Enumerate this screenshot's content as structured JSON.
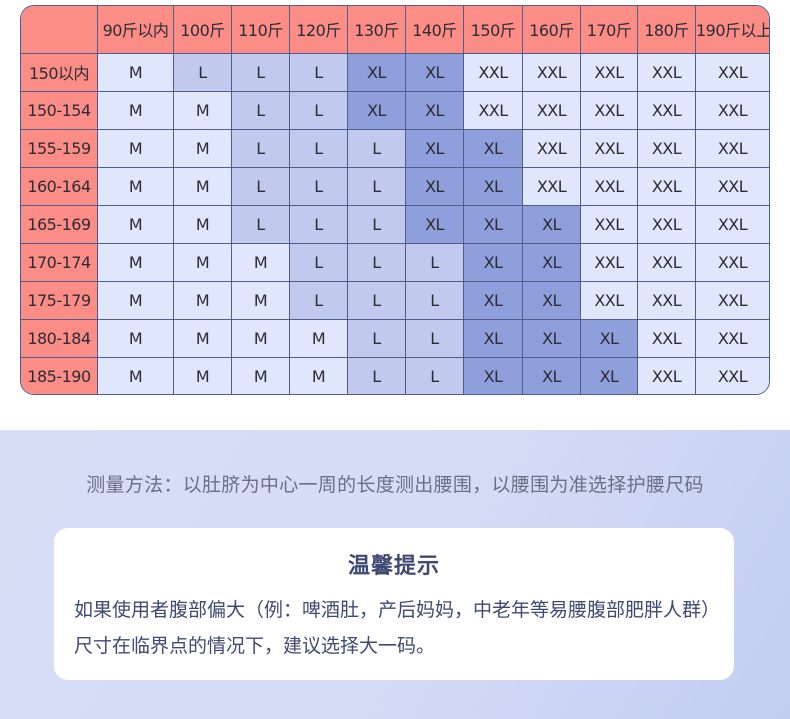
{
  "size_chart": {
    "corner": "",
    "columns": [
      "90斤以内",
      "100斤",
      "110斤",
      "120斤",
      "130斤",
      "140斤",
      "150斤",
      "160斤",
      "170斤",
      "180斤",
      "190斤以上"
    ],
    "rows": [
      {
        "height": "150以内",
        "sizes": [
          "M",
          "L",
          "L",
          "L",
          "XL",
          "XL",
          "XXL",
          "XXL",
          "XXL",
          "XXL",
          "XXL"
        ]
      },
      {
        "height": "150-154",
        "sizes": [
          "M",
          "M",
          "L",
          "L",
          "XL",
          "XL",
          "XXL",
          "XXL",
          "XXL",
          "XXL",
          "XXL"
        ]
      },
      {
        "height": "155-159",
        "sizes": [
          "M",
          "M",
          "L",
          "L",
          "L",
          "XL",
          "XL",
          "XXL",
          "XXL",
          "XXL",
          "XXL"
        ]
      },
      {
        "height": "160-164",
        "sizes": [
          "M",
          "M",
          "L",
          "L",
          "L",
          "XL",
          "XL",
          "XXL",
          "XXL",
          "XXL",
          "XXL"
        ]
      },
      {
        "height": "165-169",
        "sizes": [
          "M",
          "M",
          "L",
          "L",
          "L",
          "XL",
          "XL",
          "XL",
          "XXL",
          "XXL",
          "XXL"
        ]
      },
      {
        "height": "170-174",
        "sizes": [
          "M",
          "M",
          "M",
          "L",
          "L",
          "L",
          "XL",
          "XL",
          "XXL",
          "XXL",
          "XXL"
        ]
      },
      {
        "height": "175-179",
        "sizes": [
          "M",
          "M",
          "M",
          "L",
          "L",
          "L",
          "XL",
          "XL",
          "XXL",
          "XXL",
          "XXL"
        ]
      },
      {
        "height": "180-184",
        "sizes": [
          "M",
          "M",
          "M",
          "M",
          "L",
          "L",
          "XL",
          "XL",
          "XL",
          "XXL",
          "XXL"
        ]
      },
      {
        "height": "185-190",
        "sizes": [
          "M",
          "M",
          "M",
          "M",
          "L",
          "L",
          "XL",
          "XL",
          "XL",
          "XXL",
          "XXL"
        ]
      }
    ],
    "colors": {
      "header": "#fb8c86",
      "M": "#e0e6fb",
      "L": "#c1caee",
      "XL": "#8e9fdc",
      "XXL": "#e0e6fb",
      "border": "#4e5d8a"
    }
  },
  "measure_note": "测量方法：以肚脐为中心一周的长度测出腰围，以腰围为准选择护腰尺码",
  "tip": {
    "title": "温馨提示",
    "body": "如果使用者腹部偏大（例：啤酒肚，产后妈妈，中老年等易腰腹部肥胖人群）尺寸在临界点的情况下，建议选择大一码。"
  }
}
